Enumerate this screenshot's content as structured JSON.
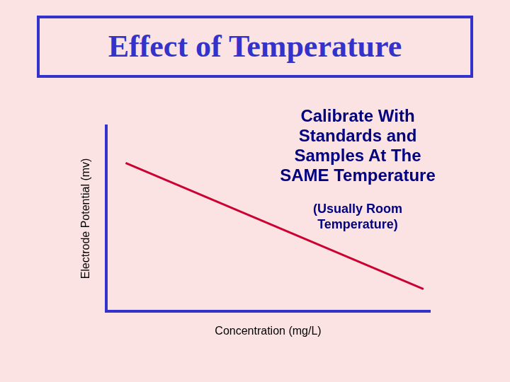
{
  "chart_data": {
    "type": "line",
    "title": "Effect of Temperature",
    "x_label": "Concentration (mg/L)",
    "y_label": "Electrode Potential (mv)",
    "x": [
      6,
      98
    ],
    "values": [
      80,
      12
    ],
    "color": "#cc0033",
    "xlim": [
      0,
      100
    ],
    "ylim": [
      0,
      100
    ],
    "grid": false,
    "tick_labels": false,
    "annotations": [
      "Calibrate With Standards and Samples At The SAME Temperature",
      "(Usually Room Temperature)"
    ]
  }
}
